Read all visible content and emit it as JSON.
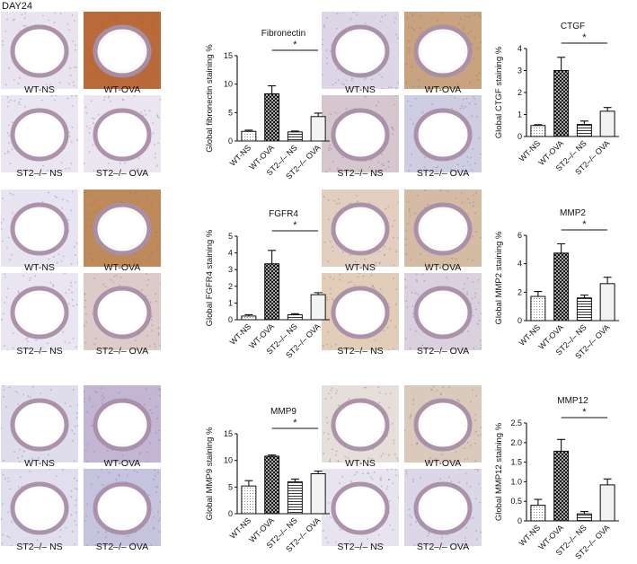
{
  "figure": {
    "day_label": "DAY24"
  },
  "panels": [
    {
      "captions": [
        "WT-NS",
        "WT-OVA",
        "ST2–/– NS",
        "ST2–/– OVA"
      ],
      "tissue": [
        "#e9e4f0",
        "#b96a38",
        "#e9e6f1",
        "#ebe5ef"
      ]
    },
    {
      "captions": [
        "WT-NS",
        "WT-OVA",
        "ST2–/– NS",
        "ST2–/– OVA"
      ],
      "tissue": [
        "#ddd6e6",
        "#c9a27f",
        "#d6c6cd",
        "#cfcde2"
      ]
    },
    {
      "captions": [
        "WT-NS",
        "WT-OVA",
        "ST2–/– NS",
        "ST2–/– OVA"
      ],
      "tissue": [
        "#e8e4f1",
        "#bf8a5a",
        "#e9e6f2",
        "#dccbc9"
      ]
    },
    {
      "captions": [
        "WT-NS",
        "WT-OVA",
        "ST2–/– NS",
        "ST2–/– OVA"
      ],
      "tissue": [
        "#e3cfbf",
        "#d6bba4",
        "#e2cdb9",
        "#d9d1de"
      ]
    },
    {
      "captions": [
        "WT-NS",
        "WT-OVA",
        "ST2–/– NS",
        "ST2–/– OVA"
      ],
      "tissue": [
        "#dfdcec",
        "#c3b6d4",
        "#e1deee",
        "#c6c3df"
      ]
    },
    {
      "captions": [
        "WT-NS",
        "WT-OVA",
        "ST2–/– NS",
        "ST2–/– OVA"
      ],
      "tissue": [
        "#e6ded8",
        "#d9cabb",
        "#e7e4ef",
        "#dcd7e6"
      ]
    }
  ],
  "chart_data": [
    {
      "type": "bar",
      "title": "Fibronectin",
      "ylabel": "Global fibronectin staining %",
      "categories": [
        "WT-NS",
        "WT-OVA",
        "ST2–/– NS",
        "ST2–/– OVA"
      ],
      "values": [
        1.7,
        8.3,
        1.6,
        4.3
      ],
      "errors": [
        0.2,
        1.4,
        0.15,
        0.6
      ],
      "ylim": [
        0,
        15
      ],
      "yticks": [
        "0",
        "5",
        "10",
        "15"
      ],
      "significance": "*"
    },
    {
      "type": "bar",
      "title": "CTGF",
      "ylabel": "Global CTGF staining %",
      "categories": [
        "WT-NS",
        "WT-OVA",
        "ST2–/– NS",
        "ST2–/– OVA"
      ],
      "values": [
        0.5,
        3.0,
        0.55,
        1.15
      ],
      "errors": [
        0.04,
        0.6,
        0.15,
        0.17
      ],
      "ylim": [
        0,
        4
      ],
      "yticks": [
        "0",
        "1",
        "2",
        "3",
        "4"
      ],
      "significance": "*"
    },
    {
      "type": "bar",
      "title": "FGFR4",
      "ylabel": "Global FGFR4 staining %",
      "categories": [
        "WT-NS",
        "WT-OVA",
        "ST2–/– NS",
        "ST2–/– OVA"
      ],
      "values": [
        0.22,
        3.35,
        0.3,
        1.5
      ],
      "errors": [
        0.08,
        0.8,
        0.06,
        0.12
      ],
      "ylim": [
        0,
        5
      ],
      "yticks": [
        "0",
        "1",
        "2",
        "3",
        "4",
        "5"
      ],
      "significance": "*"
    },
    {
      "type": "bar",
      "title": "MMP2",
      "ylabel": "Global MMP2 staining %",
      "categories": [
        "WT-NS",
        "WT-OVA",
        "ST2–/– NS",
        "ST2–/– OVA"
      ],
      "values": [
        1.7,
        4.75,
        1.6,
        2.6
      ],
      "errors": [
        0.35,
        0.65,
        0.2,
        0.45
      ],
      "ylim": [
        0,
        6
      ],
      "yticks": [
        "0",
        "2",
        "4",
        "6"
      ],
      "significance": "*"
    },
    {
      "type": "bar",
      "title": "MMP9",
      "ylabel": "Global MMP9 staining %",
      "categories": [
        "WT-NS",
        "WT-OVA",
        "ST2–/– NS",
        "ST2–/– OVA"
      ],
      "values": [
        5.2,
        10.8,
        6.0,
        7.5
      ],
      "errors": [
        1.0,
        0.2,
        0.5,
        0.5
      ],
      "ylim": [
        0,
        15
      ],
      "yticks": [
        "0",
        "5",
        "10",
        "15"
      ],
      "significance": "*"
    },
    {
      "type": "bar",
      "title": "MMP12",
      "ylabel": "Global MMP12 staining %",
      "categories": [
        "WT-NS",
        "WT-OVA",
        "ST2–/– NS",
        "ST2–/– OVA"
      ],
      "values": [
        0.4,
        1.78,
        0.18,
        0.92
      ],
      "errors": [
        0.15,
        0.3,
        0.06,
        0.15
      ],
      "ylim": [
        0,
        2.5
      ],
      "yticks": [
        "0",
        "0.5",
        "1.0",
        "1.5",
        "2.0",
        "2.5"
      ],
      "significance": "*"
    }
  ]
}
